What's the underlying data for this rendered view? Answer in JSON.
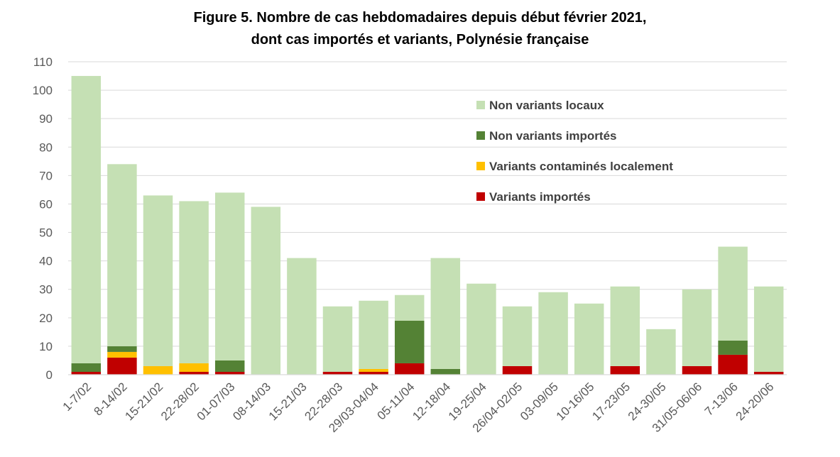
{
  "chart_data": {
    "type": "bar",
    "stacked": true,
    "title_line1": "Figure 5. Nombre de cas hebdomadaires depuis début février 2021,",
    "title_line2": "dont cas importés et variants, Polynésie française",
    "xlabel": "",
    "ylabel": "",
    "ylim": [
      0,
      110
    ],
    "yticks": [
      0,
      10,
      20,
      30,
      40,
      50,
      60,
      70,
      80,
      90,
      100,
      110
    ],
    "grid": true,
    "legend_position": "top-right",
    "categories": [
      "1-7/02",
      "8-14/02",
      "15-21/02",
      "22-28/02",
      "01-07/03",
      "08-14/03",
      "15-21/03",
      "22-28/03",
      "29/03-04/04",
      "05-11/04",
      "12-18/04",
      "19-25/04",
      "26/04-02/05",
      "03-09/05",
      "10-16/05",
      "17-23/05",
      "24-30/05",
      "31/05-06/06",
      "7-13/06",
      "24-20/06"
    ],
    "series": [
      {
        "name": "Variants importés",
        "color": "#C00000",
        "values": [
          1,
          6,
          0,
          1,
          1,
          0,
          0,
          1,
          1,
          4,
          0,
          0,
          3,
          0,
          0,
          3,
          0,
          3,
          7,
          1
        ]
      },
      {
        "name": "Variants contaminés localement",
        "color": "#FFC000",
        "values": [
          0,
          2,
          3,
          3,
          0,
          0,
          0,
          0,
          1,
          0,
          0,
          0,
          0,
          0,
          0,
          0,
          0,
          0,
          0,
          0
        ]
      },
      {
        "name": "Non variants importés",
        "color": "#548235",
        "values": [
          3,
          2,
          0,
          0,
          4,
          0,
          0,
          0,
          0,
          15,
          2,
          0,
          0,
          0,
          0,
          0,
          0,
          0,
          5,
          0
        ]
      },
      {
        "name": "Non variants locaux",
        "color": "#C5E0B4",
        "values": [
          101,
          64,
          60,
          57,
          59,
          59,
          41,
          23,
          24,
          9,
          39,
          32,
          21,
          29,
          25,
          28,
          16,
          27,
          33,
          30
        ]
      }
    ],
    "legend_order": [
      "Non variants locaux",
      "Non variants importés",
      "Variants contaminés localement",
      "Variants importés"
    ]
  }
}
